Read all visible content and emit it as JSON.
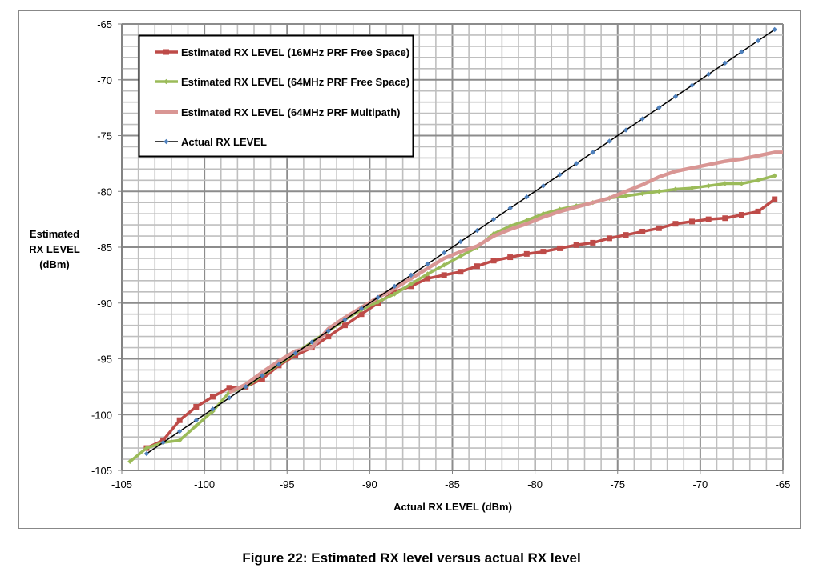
{
  "chart_data": {
    "type": "line",
    "title": "",
    "xlabel": "Actual RX LEVEL (dBm)",
    "ylabel": [
      "Estimated",
      "RX LEVEL",
      "(dBm)"
    ],
    "xlim": [
      -105,
      -65
    ],
    "ylim": [
      -105,
      -65
    ],
    "xticks": [
      -105,
      -100,
      -95,
      -90,
      -85,
      -80,
      -75,
      -70,
      -65
    ],
    "yticks": [
      -65,
      -70,
      -75,
      -80,
      -85,
      -90,
      -95,
      -100,
      -105
    ],
    "grid": true,
    "legend_position": "top-left",
    "series": [
      {
        "name": "Estimated RX LEVEL (16MHz PRF Free Space)",
        "color": "#be4b48",
        "marker": "square",
        "width": 3.5,
        "x": [
          -103.5,
          -102.5,
          -101.5,
          -100.5,
          -99.5,
          -98.5,
          -97.5,
          -96.5,
          -95.5,
          -94.5,
          -93.5,
          -92.5,
          -91.5,
          -90.5,
          -89.5,
          -88.5,
          -87.5,
          -86.5,
          -85.5,
          -84.5,
          -83.5,
          -82.5,
          -81.5,
          -80.5,
          -79.5,
          -78.5,
          -77.5,
          -76.5,
          -75.5,
          -74.5,
          -73.5,
          -72.5,
          -71.5,
          -70.5,
          -69.5,
          -68.5,
          -67.5,
          -66.5,
          -65.5
        ],
        "y": [
          -103.0,
          -102.3,
          -100.5,
          -99.3,
          -98.4,
          -97.6,
          -97.5,
          -96.8,
          -95.6,
          -94.7,
          -94.0,
          -93.0,
          -92.0,
          -91.0,
          -90.0,
          -89.0,
          -88.5,
          -87.8,
          -87.5,
          -87.2,
          -86.7,
          -86.2,
          -85.9,
          -85.6,
          -85.4,
          -85.1,
          -84.8,
          -84.6,
          -84.2,
          -83.9,
          -83.6,
          -83.3,
          -82.9,
          -82.7,
          -82.5,
          -82.4,
          -82.1,
          -81.8,
          -80.7
        ]
      },
      {
        "name": "Estimated RX LEVEL (64MHz PRF Free Space)",
        "color": "#9bbb59",
        "marker": "diamond",
        "width": 3.5,
        "x": [
          -104.5,
          -103.5,
          -102.5,
          -101.5,
          -100.5,
          -99.5,
          -98.5,
          -97.5,
          -96.5,
          -95.5,
          -94.5,
          -93.5,
          -92.5,
          -91.5,
          -90.5,
          -89.5,
          -88.5,
          -87.5,
          -86.5,
          -85.5,
          -84.5,
          -83.5,
          -82.5,
          -81.5,
          -80.5,
          -79.5,
          -78.5,
          -77.5,
          -76.5,
          -75.5,
          -74.5,
          -73.5,
          -72.5,
          -71.5,
          -70.5,
          -69.5,
          -68.5,
          -67.5,
          -66.5,
          -65.5
        ],
        "y": [
          -104.2,
          -103.0,
          -102.5,
          -102.3,
          -101.0,
          -99.7,
          -98.0,
          -97.5,
          -96.5,
          -95.5,
          -94.5,
          -93.5,
          -92.5,
          -91.5,
          -90.6,
          -89.9,
          -89.2,
          -88.3,
          -87.4,
          -86.6,
          -85.8,
          -85.0,
          -83.8,
          -83.1,
          -82.6,
          -82.0,
          -81.6,
          -81.3,
          -81.0,
          -80.6,
          -80.4,
          -80.2,
          -80.0,
          -79.8,
          -79.7,
          -79.5,
          -79.3,
          -79.3,
          -79.0,
          -78.6
        ]
      },
      {
        "name": "Estimated RX LEVEL (64MHz PRF Multipath)",
        "color": "#d99694",
        "marker": "none",
        "width": 4.5,
        "x": [
          -98.5,
          -97.5,
          -96.5,
          -95.5,
          -94.5,
          -93.5,
          -92.5,
          -91.5,
          -90.5,
          -89.5,
          -88.5,
          -87.5,
          -86.5,
          -85.5,
          -84.5,
          -83.5,
          -82.5,
          -81.5,
          -80.5,
          -79.5,
          -78.5,
          -77.5,
          -76.5,
          -75.5,
          -74.5,
          -73.5,
          -72.5,
          -71.5,
          -70.5,
          -69.5,
          -68.5,
          -67.5,
          -66.5,
          -65.5,
          -65.0
        ],
        "y": [
          -98.0,
          -97.3,
          -96.2,
          -95.2,
          -94.3,
          -94.0,
          -92.3,
          -91.3,
          -90.4,
          -89.5,
          -88.7,
          -87.8,
          -86.9,
          -86.0,
          -85.4,
          -84.9,
          -84.0,
          -83.4,
          -82.9,
          -82.3,
          -81.8,
          -81.4,
          -81.0,
          -80.6,
          -80.0,
          -79.4,
          -78.7,
          -78.2,
          -77.9,
          -77.6,
          -77.3,
          -77.1,
          -76.8,
          -76.5,
          -76.5
        ]
      },
      {
        "name": "Actual RX LEVEL",
        "color": "#000000",
        "marker_color": "#4f81bd",
        "marker": "diamond",
        "width": 1.5,
        "x": [
          -103.5,
          -102.5,
          -101.5,
          -100.5,
          -99.5,
          -98.5,
          -97.5,
          -96.5,
          -95.5,
          -94.5,
          -93.5,
          -92.5,
          -91.5,
          -90.5,
          -89.5,
          -88.5,
          -87.5,
          -86.5,
          -85.5,
          -84.5,
          -83.5,
          -82.5,
          -81.5,
          -80.5,
          -79.5,
          -78.5,
          -77.5,
          -76.5,
          -75.5,
          -74.5,
          -73.5,
          -72.5,
          -71.5,
          -70.5,
          -69.5,
          -68.5,
          -67.5,
          -66.5,
          -65.5
        ],
        "y": [
          -103.5,
          -102.5,
          -101.5,
          -100.5,
          -99.5,
          -98.5,
          -97.5,
          -96.5,
          -95.5,
          -94.5,
          -93.5,
          -92.5,
          -91.5,
          -90.5,
          -89.5,
          -88.5,
          -87.5,
          -86.5,
          -85.5,
          -84.5,
          -83.5,
          -82.5,
          -81.5,
          -80.5,
          -79.5,
          -78.5,
          -77.5,
          -76.5,
          -75.5,
          -74.5,
          -73.5,
          -72.5,
          -71.5,
          -70.5,
          -69.5,
          -68.5,
          -67.5,
          -66.5,
          -65.5
        ]
      }
    ]
  },
  "caption": "Figure 22:  Estimated RX level versus actual RX level"
}
